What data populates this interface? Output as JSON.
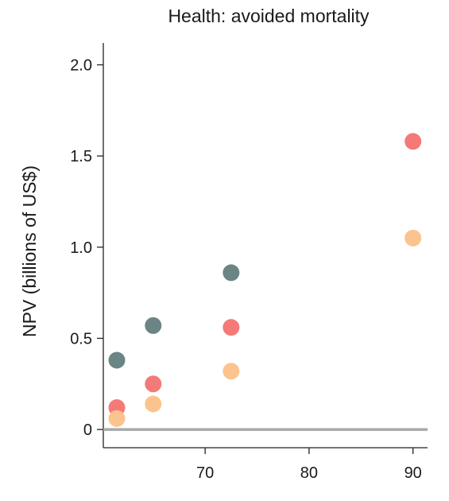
{
  "chart_data": {
    "type": "scatter",
    "title": "Health: avoided mortality",
    "xlabel": "",
    "ylabel": "NPV (billions of US$)",
    "xlim": [
      60.2,
      91.4
    ],
    "ylim": [
      -0.1,
      2.12
    ],
    "x_ticks": [
      {
        "value": 70,
        "label": "70"
      },
      {
        "value": 80,
        "label": "80"
      },
      {
        "value": 90,
        "label": "90"
      }
    ],
    "y_ticks": [
      {
        "value": 0,
        "label": "0"
      },
      {
        "value": 0.5,
        "label": "0.5"
      },
      {
        "value": 1.0,
        "label": "1.0"
      },
      {
        "value": 1.5,
        "label": "1.5"
      },
      {
        "value": 2.0,
        "label": "2.0"
      }
    ],
    "zero_line": true,
    "grid": false,
    "series": [
      {
        "color": "#6b8585",
        "points": [
          {
            "x": 61.5,
            "y": 0.38
          },
          {
            "x": 65.0,
            "y": 0.57
          },
          {
            "x": 72.5,
            "y": 0.86
          }
        ]
      },
      {
        "color": "#f47a78",
        "points": [
          {
            "x": 61.5,
            "y": 0.12
          },
          {
            "x": 65.0,
            "y": 0.25
          },
          {
            "x": 72.5,
            "y": 0.56
          },
          {
            "x": 90.0,
            "y": 1.58
          }
        ]
      },
      {
        "color": "#fbc48e",
        "points": [
          {
            "x": 61.5,
            "y": 0.06
          },
          {
            "x": 65.0,
            "y": 0.14
          },
          {
            "x": 72.5,
            "y": 0.32
          },
          {
            "x": 90.0,
            "y": 1.05
          }
        ]
      }
    ]
  }
}
